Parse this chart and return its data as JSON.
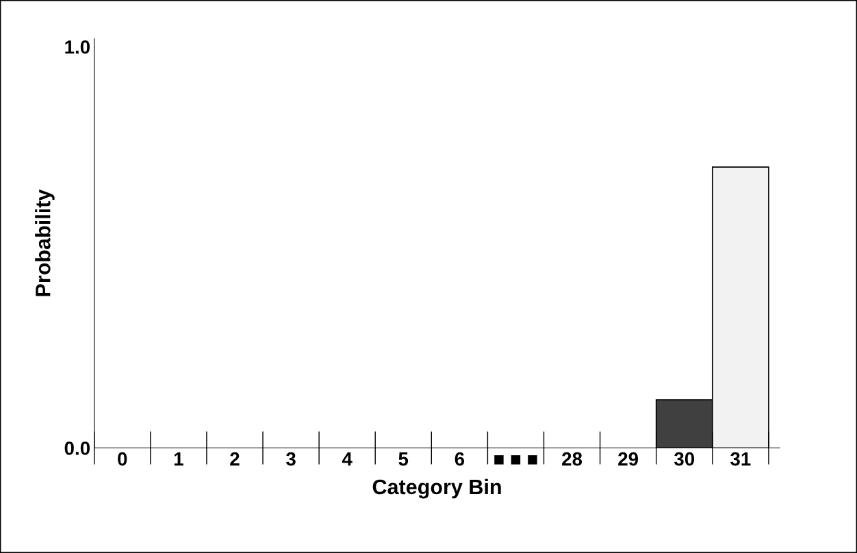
{
  "chart_data": {
    "type": "bar",
    "xlabel": "Category Bin",
    "ylabel": "Probability",
    "categories": [
      "0",
      "1",
      "2",
      "3",
      "4",
      "5",
      "6",
      "■ ■ ■",
      "28",
      "29",
      "30",
      "31"
    ],
    "values": [
      0,
      0,
      0,
      0,
      0,
      0,
      0,
      null,
      0,
      0,
      0.12,
      0.7
    ],
    "colors": [
      "#404040",
      "#404040",
      "#404040",
      "#404040",
      "#404040",
      "#404040",
      "#404040",
      "#404040",
      "#404040",
      "#404040",
      "#404040",
      "#f2f2f2"
    ],
    "ylim": [
      0,
      1.02
    ],
    "yticks": [
      {
        "value": 0,
        "label": "0.0"
      },
      {
        "value": 1,
        "label": "1.0"
      }
    ],
    "grid": false,
    "legend": false
  }
}
